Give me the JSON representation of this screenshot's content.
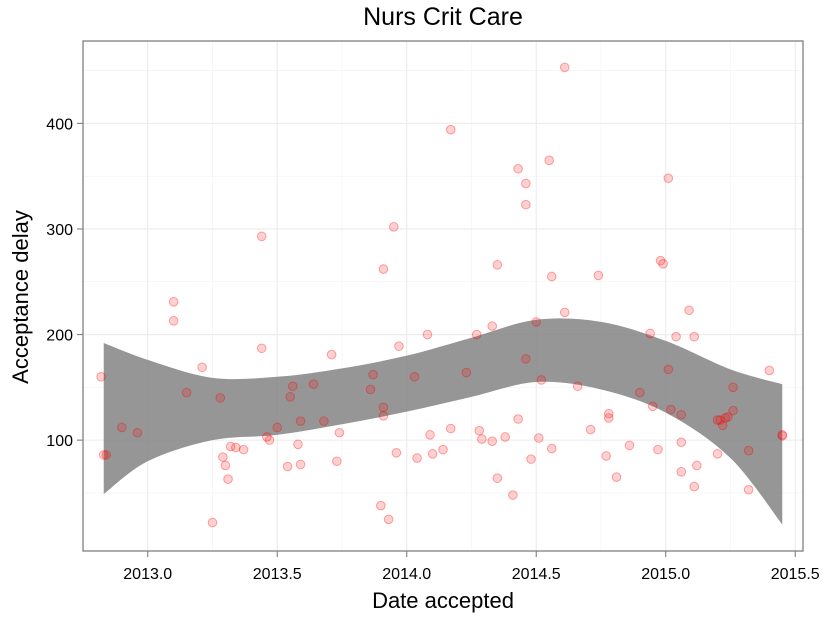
{
  "chart_data": {
    "type": "scatter",
    "title": "Nurs Crit Care",
    "xlabel": "Date accepted",
    "ylabel": "Acceptance delay",
    "xlim": [
      2012.75,
      2015.53
    ],
    "ylim": [
      -5,
      478
    ],
    "xticks": [
      "2013.0",
      "2013.5",
      "2014.0",
      "2014.5",
      "2015.0",
      "2015.5"
    ],
    "xtick_values": [
      2013.0,
      2013.5,
      2014.0,
      2014.5,
      2015.0,
      2015.5
    ],
    "yticks": [
      "100",
      "200",
      "300",
      "400"
    ],
    "ytick_values": [
      100,
      200,
      300,
      400
    ],
    "grid": true,
    "point_color": "#ff0000",
    "band_color": "#7f7f7f",
    "points": [
      [
        2012.82,
        160
      ],
      [
        2012.83,
        86
      ],
      [
        2012.84,
        86
      ],
      [
        2012.9,
        112
      ],
      [
        2012.96,
        107
      ],
      [
        2013.1,
        231
      ],
      [
        2013.1,
        213
      ],
      [
        2013.15,
        145
      ],
      [
        2013.21,
        169
      ],
      [
        2013.25,
        22
      ],
      [
        2013.28,
        140
      ],
      [
        2013.29,
        84
      ],
      [
        2013.3,
        76
      ],
      [
        2013.31,
        63
      ],
      [
        2013.32,
        94
      ],
      [
        2013.34,
        93
      ],
      [
        2013.37,
        91
      ],
      [
        2013.44,
        293
      ],
      [
        2013.44,
        187
      ],
      [
        2013.46,
        103
      ],
      [
        2013.47,
        100
      ],
      [
        2013.5,
        112
      ],
      [
        2013.54,
        75
      ],
      [
        2013.55,
        141
      ],
      [
        2013.56,
        151
      ],
      [
        2013.58,
        96
      ],
      [
        2013.59,
        77
      ],
      [
        2013.59,
        118
      ],
      [
        2013.64,
        153
      ],
      [
        2013.68,
        118
      ],
      [
        2013.71,
        181
      ],
      [
        2013.73,
        80
      ],
      [
        2013.74,
        107
      ],
      [
        2013.86,
        148
      ],
      [
        2013.87,
        162
      ],
      [
        2013.9,
        38
      ],
      [
        2013.91,
        131
      ],
      [
        2013.91,
        262
      ],
      [
        2013.91,
        123
      ],
      [
        2013.93,
        25
      ],
      [
        2013.95,
        302
      ],
      [
        2013.96,
        88
      ],
      [
        2013.97,
        189
      ],
      [
        2014.03,
        160
      ],
      [
        2014.04,
        83
      ],
      [
        2014.08,
        200
      ],
      [
        2014.09,
        105
      ],
      [
        2014.1,
        87
      ],
      [
        2014.14,
        91
      ],
      [
        2014.17,
        394
      ],
      [
        2014.17,
        111
      ],
      [
        2014.23,
        164
      ],
      [
        2014.27,
        200
      ],
      [
        2014.28,
        109
      ],
      [
        2014.29,
        101
      ],
      [
        2014.33,
        208
      ],
      [
        2014.33,
        99
      ],
      [
        2014.35,
        266
      ],
      [
        2014.35,
        64
      ],
      [
        2014.38,
        103
      ],
      [
        2014.41,
        48
      ],
      [
        2014.43,
        357
      ],
      [
        2014.43,
        120
      ],
      [
        2014.46,
        343
      ],
      [
        2014.46,
        323
      ],
      [
        2014.46,
        177
      ],
      [
        2014.48,
        82
      ],
      [
        2014.5,
        212
      ],
      [
        2014.51,
        102
      ],
      [
        2014.52,
        157
      ],
      [
        2014.55,
        365
      ],
      [
        2014.56,
        255
      ],
      [
        2014.56,
        92
      ],
      [
        2014.61,
        453
      ],
      [
        2014.61,
        221
      ],
      [
        2014.66,
        151
      ],
      [
        2014.71,
        110
      ],
      [
        2014.74,
        256
      ],
      [
        2014.77,
        85
      ],
      [
        2014.78,
        121
      ],
      [
        2014.78,
        125
      ],
      [
        2014.81,
        65
      ],
      [
        2014.86,
        95
      ],
      [
        2014.9,
        145
      ],
      [
        2014.94,
        201
      ],
      [
        2014.95,
        132
      ],
      [
        2014.97,
        91
      ],
      [
        2014.98,
        270
      ],
      [
        2014.99,
        267
      ],
      [
        2015.01,
        348
      ],
      [
        2015.01,
        167
      ],
      [
        2015.02,
        129
      ],
      [
        2015.04,
        198
      ],
      [
        2015.06,
        124
      ],
      [
        2015.06,
        98
      ],
      [
        2015.06,
        70
      ],
      [
        2015.09,
        223
      ],
      [
        2015.11,
        198
      ],
      [
        2015.11,
        56
      ],
      [
        2015.12,
        76
      ],
      [
        2015.2,
        119
      ],
      [
        2015.2,
        87
      ],
      [
        2015.21,
        119
      ],
      [
        2015.22,
        114
      ],
      [
        2015.23,
        121
      ],
      [
        2015.24,
        122
      ],
      [
        2015.26,
        150
      ],
      [
        2015.26,
        128
      ],
      [
        2015.32,
        90
      ],
      [
        2015.32,
        53
      ],
      [
        2015.4,
        166
      ],
      [
        2015.45,
        104
      ],
      [
        2015.45,
        105
      ]
    ],
    "smooth_x": [
      2012.83,
      2013.0,
      2013.25,
      2013.5,
      2013.75,
      2014.0,
      2014.25,
      2014.5,
      2014.75,
      2015.0,
      2015.25,
      2015.45
    ],
    "smooth_upper": [
      192,
      176,
      159,
      160,
      168,
      180,
      197,
      214,
      212,
      194,
      167,
      153
    ],
    "smooth_lower": [
      49,
      80,
      100,
      105,
      115,
      127,
      141,
      155,
      148,
      126,
      83,
      20
    ]
  }
}
